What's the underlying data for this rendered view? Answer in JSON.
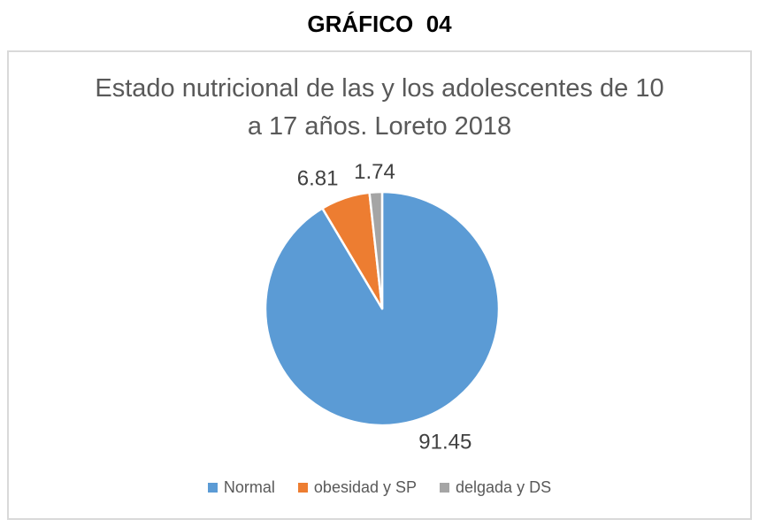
{
  "page": {
    "heading": "GRÁFICO  04"
  },
  "chart": {
    "title": "Estado nutricional de las y los adolescentes de 10 a 17 años. Loreto 2018",
    "title_color": "#595959",
    "frame_border_color": "#D9D9D9",
    "data_label_color": "#404040",
    "legend_text_color": "#595959"
  },
  "chart_data": {
    "type": "pie",
    "title": "Estado nutricional de las y los adolescentes de 10 a 17 años. Loreto 2018",
    "categories": [
      "Normal",
      "obesidad y SP",
      "delgada y DS"
    ],
    "values": [
      91.45,
      6.81,
      1.74
    ],
    "data_labels": [
      "91.45",
      "6.81",
      "1.74"
    ],
    "colors": [
      "#5B9BD5",
      "#ED7D31",
      "#A5A5A5"
    ],
    "start_angle_deg": 0,
    "direction": "clockwise",
    "slice_border_color": "#FFFFFF",
    "legend_position": "bottom",
    "data_label_position": "outside-end"
  }
}
